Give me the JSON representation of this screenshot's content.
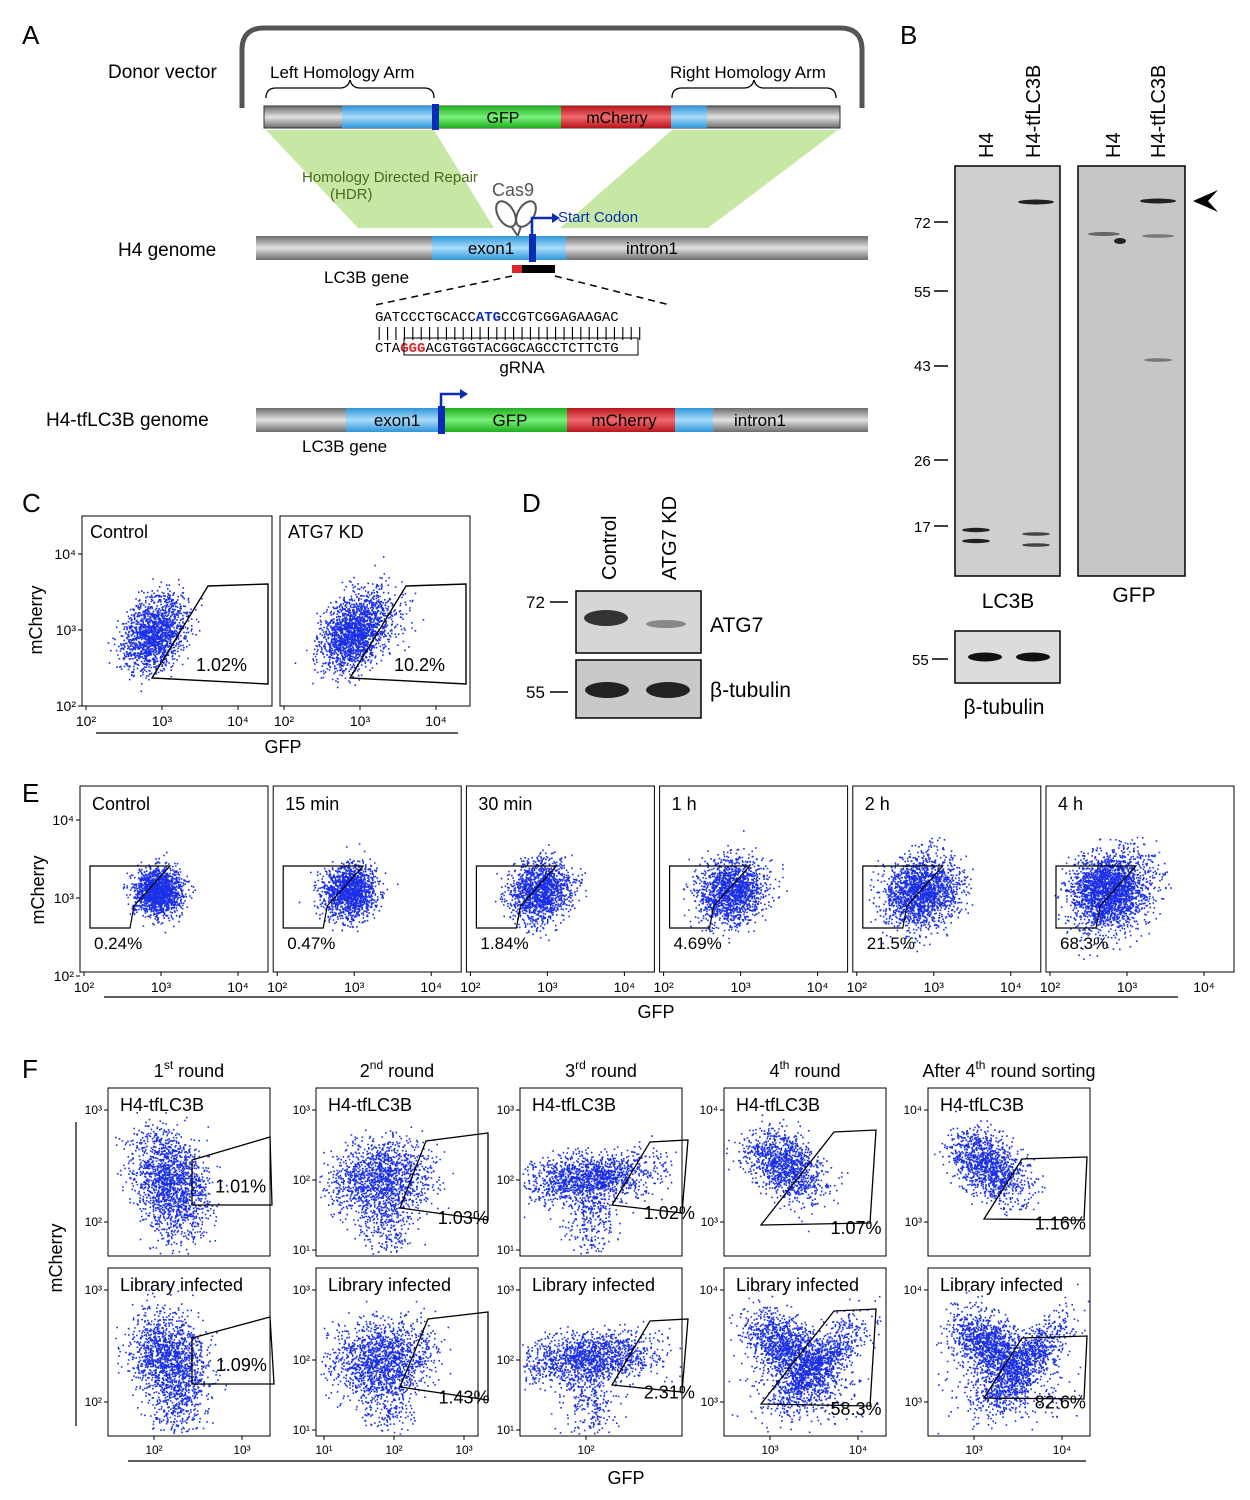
{
  "panels": {
    "A": "A",
    "B": "B",
    "C": "C",
    "D": "D",
    "E": "E",
    "F": "F"
  },
  "panelA": {
    "donor_vector": "Donor vector",
    "left_arm": "Left Homology Arm",
    "right_arm": "Right Homology Arm",
    "gfp": "GFP",
    "mcherry": "mCherry",
    "hdr_line1": "Homology Directed Repair",
    "hdr_line2": "(HDR)",
    "cas9": "Cas9",
    "start_codon": "Start Codon",
    "h4_genome": "H4 genome",
    "exon1": "exon1",
    "intron1": "intron1",
    "lc3b_gene": "LC3B gene",
    "seq_top_a": "GATCCCTGCACC",
    "seq_top_atg": "ATG",
    "seq_top_b": "CCGTCGGAGAAGAC",
    "seq_pipes": "||||||||||||||||||||||||||||||||",
    "seq_bot_a": "CTA",
    "seq_bot_ggg": "GGG",
    "seq_bot_b": "ACGTGGTACGGCAGCCTCTT",
    "seq_bot_c": "CTG",
    "grna": "gRNA",
    "tf_genome": "H4-tfLC3B genome"
  },
  "panelB": {
    "lanes": [
      "H4",
      "H4-tfLC3B",
      "H4",
      "H4-tfLC3B"
    ],
    "mw": [
      "72",
      "55",
      "43",
      "26",
      "17"
    ],
    "lc3b": "LC3B",
    "gfp": "GFP",
    "tubulin_mw": "55",
    "tubulin": "β-tubulin"
  },
  "panelC": {
    "titles": [
      "Control",
      "ATG7 KD"
    ],
    "pcts": [
      "1.02%",
      "10.2%"
    ],
    "yticks": [
      "10⁴",
      "10³",
      "10²"
    ],
    "xticks": [
      "10²",
      "10³",
      "10⁴"
    ],
    "ylabel": "mCherry",
    "xlabel": "GFP"
  },
  "panelD": {
    "lanes": [
      "Control",
      "ATG7 KD"
    ],
    "mw": [
      "72",
      "55"
    ],
    "atg7": "ATG7",
    "tubulin": "β-tubulin"
  },
  "panelE": {
    "titles": [
      "Control",
      "15 min",
      "30 min",
      "1 h",
      "2 h",
      "4 h"
    ],
    "pcts": [
      "0.24%",
      "0.47%",
      "1.84%",
      "4.69%",
      "21.5%",
      "68.3%"
    ],
    "yticks": [
      "10⁴",
      "10³",
      "10²"
    ],
    "xticks": [
      "10²",
      "10³",
      "10⁴"
    ],
    "ylabel": "mCherry",
    "xlabel": "GFP"
  },
  "panelF": {
    "rounds": [
      {
        "base": "1",
        "sup": "st",
        "rest": " round"
      },
      {
        "base": "2",
        "sup": "nd",
        "rest": " round"
      },
      {
        "base": "3",
        "sup": "rd",
        "rest": " round"
      },
      {
        "base": "4",
        "sup": "th",
        "rest": " round"
      },
      {
        "base": "After 4",
        "sup": "th",
        "rest": " round sorting"
      }
    ],
    "row_titles": [
      "H4-tfLC3B",
      "Library infected"
    ],
    "pcts_top": [
      "1.01%",
      "1.03%",
      "1.02%",
      "1.07%",
      "1.16%"
    ],
    "pcts_bottom": [
      "1.09%",
      "1.43%",
      "2.31%",
      "58.3%",
      "82.6%"
    ],
    "yticks": [
      [
        "10³",
        "10²"
      ],
      [
        "10³",
        "10²",
        "10¹"
      ],
      [
        "10³",
        "10²",
        "10¹"
      ],
      [
        "10⁴",
        "10³"
      ],
      [
        "10⁴",
        "10³"
      ]
    ],
    "xticks": [
      [
        "10²",
        "10³"
      ],
      [
        "10¹",
        "10²",
        "10³"
      ],
      [
        "10²"
      ],
      [
        "10³",
        "10⁴"
      ],
      [
        "10³",
        "10⁴"
      ]
    ],
    "ylabel": "mCherry",
    "xlabel": "GFP"
  },
  "colors": {
    "dots": "#1a2fe6",
    "gfp": "#2fd12f",
    "mcherry": "#d8262b",
    "exon": "#59b4ec",
    "blue_mark": "#0a2db4",
    "hdr": "#c6e8a4"
  }
}
